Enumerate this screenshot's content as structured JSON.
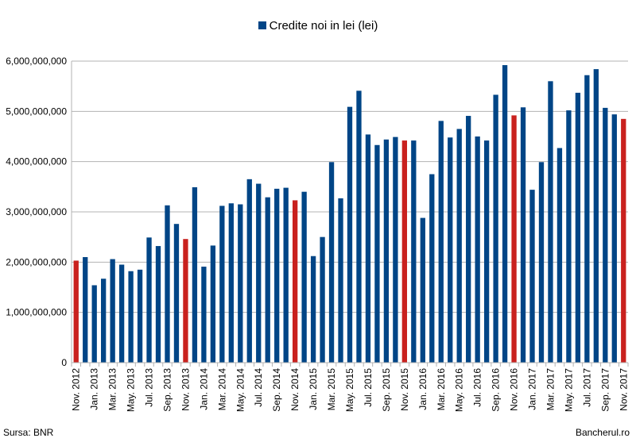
{
  "chart_data": {
    "type": "bar",
    "legend": [
      "Credite noi in lei (lei)"
    ],
    "legend_position": "top",
    "grid": true,
    "ylim": [
      0,
      6000000000
    ],
    "yticks": [
      "0",
      "1,000,000,000",
      "2,000,000,000",
      "3,000,000,000",
      "4,000,000,000",
      "5,000,000,000",
      "6,000,000,000"
    ],
    "colors": {
      "series": "#004586",
      "highlight": "#c9211e",
      "grid": "#b3b3b3"
    },
    "categories": [
      "Nov. 2012",
      "Dec. 2012",
      "Jan. 2013",
      "Feb. 2013",
      "Mar. 2013",
      "Apr. 2013",
      "May. 2013",
      "Jun. 2013",
      "Jul. 2013",
      "Aug. 2013",
      "Sep. 2013",
      "Oct. 2013",
      "Nov. 2013",
      "Dec. 2013",
      "Jan. 2014",
      "Feb. 2014",
      "Mar. 2014",
      "Apr. 2014",
      "May. 2014",
      "Jun. 2014",
      "Jul. 2014",
      "Aug. 2014",
      "Sep. 2014",
      "Oct. 2014",
      "Nov. 2014",
      "Dec. 2014",
      "Jan. 2015",
      "Feb. 2015",
      "Mar. 2015",
      "Apr. 2015",
      "May. 2015",
      "Jun. 2015",
      "Jul. 2015",
      "Aug. 2015",
      "Sep. 2015",
      "Oct. 2015",
      "Nov. 2015",
      "Dec. 2015",
      "Jan. 2016",
      "Feb. 2016",
      "Mar. 2016",
      "Apr. 2016",
      "May. 2016",
      "Jun. 2016",
      "Jul. 2016",
      "Aug. 2016",
      "Sep. 2016",
      "Oct. 2016",
      "Nov. 2016",
      "Dec. 2016",
      "Jan. 2017",
      "Feb. 2017",
      "Mar. 2017",
      "Apr. 2017",
      "May. 2017",
      "Jun. 2017",
      "Jul. 2017",
      "Aug. 2017",
      "Sep. 2017",
      "Oct. 2017",
      "Nov. 2017"
    ],
    "tick_labels": [
      "Nov. 2012",
      "Jan. 2013",
      "Mar. 2013",
      "May. 2013",
      "Jul. 2013",
      "Sep. 2013",
      "Nov. 2013",
      "Jan. 2014",
      "Mar. 2014",
      "May. 2014",
      "Jul. 2014",
      "Sep. 2014",
      "Nov. 2014",
      "Jan. 2015",
      "Mar. 2015",
      "May. 2015",
      "Jul. 2015",
      "Sep. 2015",
      "Nov. 2015",
      "Jan. 2016",
      "Mar. 2016",
      "May. 2016",
      "Jul. 2016",
      "Sep. 2016",
      "Nov. 2016",
      "Jan. 2017",
      "Mar. 2017",
      "May. 2017",
      "Jul. 2017",
      "Sep. 2017",
      "Nov. 2017"
    ],
    "series": [
      {
        "name": "Credite noi in lei (lei)",
        "values": [
          2030000000,
          2100000000,
          1540000000,
          1670000000,
          2060000000,
          1950000000,
          1820000000,
          1850000000,
          2490000000,
          2320000000,
          3130000000,
          2760000000,
          2460000000,
          3490000000,
          1910000000,
          2330000000,
          3120000000,
          3170000000,
          3150000000,
          3650000000,
          3560000000,
          3290000000,
          3460000000,
          3480000000,
          3230000000,
          3400000000,
          2120000000,
          2500000000,
          3990000000,
          3270000000,
          5090000000,
          5410000000,
          4540000000,
          4330000000,
          4440000000,
          4490000000,
          4420000000,
          4420000000,
          2880000000,
          3750000000,
          4810000000,
          4480000000,
          4650000000,
          4910000000,
          4500000000,
          4420000000,
          5330000000,
          5920000000,
          4920000000,
          5080000000,
          3440000000,
          3990000000,
          5600000000,
          4270000000,
          5020000000,
          5370000000,
          5720000000,
          5840000000,
          5070000000,
          4940000000,
          4850000000
        ]
      }
    ],
    "highlighted_categories": [
      "Nov. 2012",
      "Nov. 2013",
      "Nov. 2014",
      "Nov. 2015",
      "Nov. 2016",
      "Nov. 2017"
    ]
  },
  "footer": {
    "source": "Sursa: BNR",
    "brand": "Bancherul.ro"
  }
}
